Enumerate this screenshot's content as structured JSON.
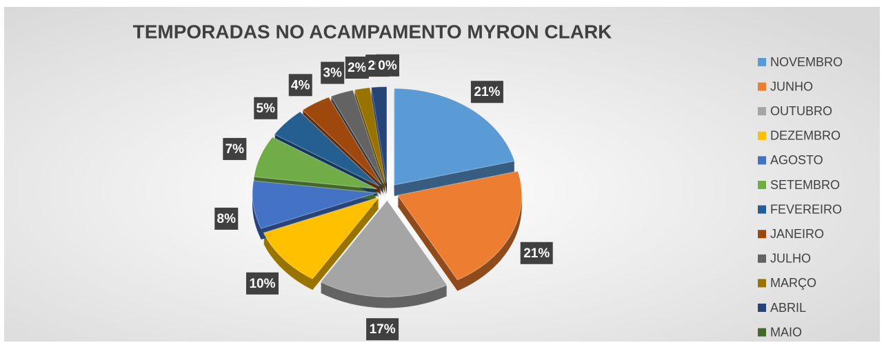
{
  "chart_data": {
    "type": "pie",
    "title": "TEMPORADAS NO ACAMPAMENTO MYRON CLARK",
    "categories": [
      "NOVEMBRO",
      "JUNHO",
      "OUTUBRO",
      "DEZEMBRO",
      "AGOSTO",
      "SETEMBRO",
      "FEVEREIRO",
      "JANEIRO",
      "JULHO",
      "MARÇO",
      "ABRIL",
      "MAIO"
    ],
    "values": [
      21,
      21,
      17,
      10,
      8,
      7,
      5,
      4,
      3,
      2,
      2,
      0
    ],
    "value_labels": [
      "21%",
      "21%",
      "17%",
      "10%",
      "8%",
      "7%",
      "5%",
      "4%",
      "3%",
      "2%",
      "2%",
      "0%"
    ],
    "colors": [
      "#5b9bd5",
      "#ed7d31",
      "#a5a5a5",
      "#ffc000",
      "#4472c4",
      "#70ad47",
      "#255e91",
      "#9e480e",
      "#636363",
      "#997300",
      "#264478",
      "#43682b"
    ],
    "legend": "right"
  }
}
